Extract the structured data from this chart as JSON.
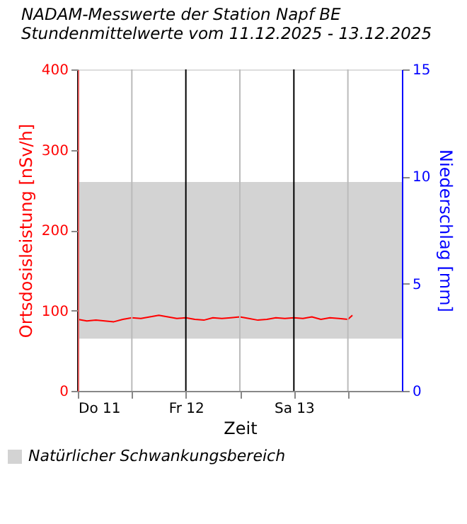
{
  "chart_data": {
    "type": "line",
    "title": [
      "NADAM-Messwerte der Station Napf BE",
      "Stundenmittelwerte vom 11.12.2025 - 13.12.2025"
    ],
    "xlabel": "Zeit",
    "ylabel": "Ortsdosisleistung [nSv/h]",
    "y2label": "Niederschlag [mm]",
    "x": [
      "2025-12-11T00:00",
      "2025-12-11T02:00",
      "2025-12-11T04:00",
      "2025-12-11T06:00",
      "2025-12-11T08:00",
      "2025-12-11T10:00",
      "2025-12-11T12:00",
      "2025-12-11T14:00",
      "2025-12-11T16:00",
      "2025-12-11T18:00",
      "2025-12-11T20:00",
      "2025-12-11T22:00",
      "2025-12-12T00:00",
      "2025-12-12T02:00",
      "2025-12-12T04:00",
      "2025-12-12T06:00",
      "2025-12-12T08:00",
      "2025-12-12T10:00",
      "2025-12-12T12:00",
      "2025-12-12T14:00",
      "2025-12-12T16:00",
      "2025-12-12T18:00",
      "2025-12-12T20:00",
      "2025-12-12T22:00",
      "2025-12-13T00:00",
      "2025-12-13T02:00",
      "2025-12-13T04:00",
      "2025-12-13T06:00",
      "2025-12-13T08:00",
      "2025-12-13T10:00",
      "2025-12-13T12:00",
      "2025-12-13T13:00"
    ],
    "series": [
      {
        "color": "#ff0000",
        "values": [
          89,
          87,
          88,
          87,
          86,
          89,
          91,
          90,
          92,
          94,
          92,
          90,
          91,
          89,
          88,
          91,
          90,
          91,
          92,
          90,
          88,
          89,
          91,
          90,
          91,
          90,
          92,
          89,
          91,
          90,
          89,
          94
        ]
      }
    ],
    "xlim": [
      "2025-12-11T00:00",
      "2025-12-14T00:00"
    ],
    "xticks": [
      {
        "value": "2025-12-11T00:00",
        "label": "Do 11"
      },
      {
        "value": "2025-12-11T12:00",
        "label": null
      },
      {
        "value": "2025-12-12T00:00",
        "label": "Fr 12"
      },
      {
        "value": "2025-12-12T12:00",
        "label": null
      },
      {
        "value": "2025-12-13T00:00",
        "label": "Sa 13"
      },
      {
        "value": "2025-12-13T12:00",
        "label": null
      }
    ],
    "ylim": [
      0,
      400
    ],
    "yticks": [
      0,
      100,
      200,
      300,
      400
    ],
    "y2lim": [
      0,
      15
    ],
    "y2ticks": [
      0,
      5,
      10,
      15
    ],
    "bands": [
      {
        "axis": "y",
        "from": 65,
        "to": 260,
        "label": "Natürlicher Schwankungsbereich",
        "color": "#d3d3d3"
      }
    ],
    "grid": "x",
    "legend": "bottom left",
    "line_style": "solid",
    "marker": "none"
  }
}
